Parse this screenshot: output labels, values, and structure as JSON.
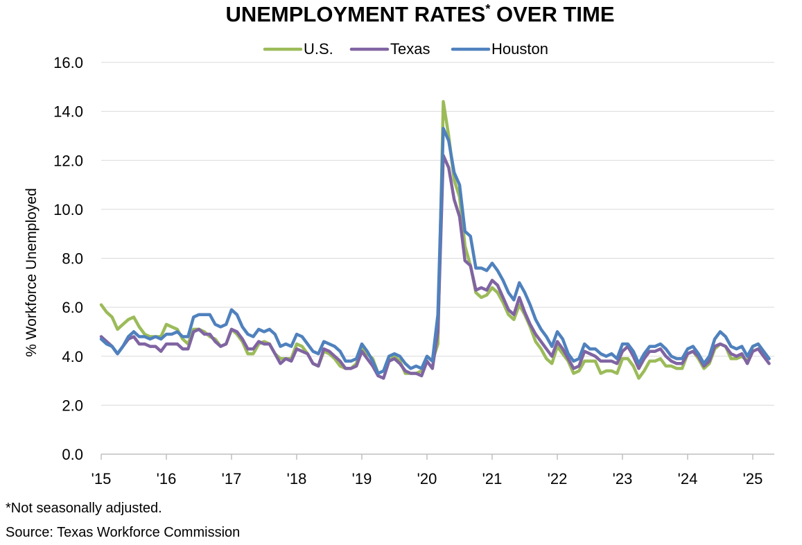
{
  "chart_data": {
    "type": "line",
    "title": "UNEMPLOYMENT RATES",
    "title_superscript": "*",
    "title_suffix": " OVER TIME",
    "ylabel": "% Workforce Unemployed",
    "xlabel": "",
    "ylim": [
      0,
      16
    ],
    "yticks": [
      "0.0",
      "2.0",
      "4.0",
      "6.0",
      "8.0",
      "10.0",
      "12.0",
      "14.0",
      "16.0"
    ],
    "xlim": [
      2015,
      2025.33
    ],
    "xticks": [
      {
        "value": 2015,
        "label": "'15"
      },
      {
        "value": 2016,
        "label": "'16"
      },
      {
        "value": 2017,
        "label": "'17"
      },
      {
        "value": 2018,
        "label": "'18"
      },
      {
        "value": 2019,
        "label": "'19"
      },
      {
        "value": 2020,
        "label": "'20"
      },
      {
        "value": 2021,
        "label": "'21"
      },
      {
        "value": 2022,
        "label": "'22"
      },
      {
        "value": 2023,
        "label": "'23"
      },
      {
        "value": 2024,
        "label": "'24"
      },
      {
        "value": 2025,
        "label": "'25"
      }
    ],
    "grid": "horizontal",
    "legend_position": "top-center",
    "x_start": "2015-01",
    "x_frequency": "monthly",
    "series": [
      {
        "name": "U.S.",
        "color": "#9BBB59",
        "values": [
          6.1,
          5.8,
          5.6,
          5.1,
          5.3,
          5.5,
          5.6,
          5.2,
          4.9,
          4.8,
          4.8,
          4.8,
          5.3,
          5.2,
          5.1,
          4.7,
          4.5,
          5.1,
          5.1,
          5.0,
          4.8,
          4.7,
          4.4,
          4.5,
          5.1,
          4.9,
          4.6,
          4.1,
          4.1,
          4.5,
          4.6,
          4.5,
          4.1,
          3.9,
          3.9,
          3.9,
          4.5,
          4.4,
          4.1,
          3.7,
          3.6,
          4.2,
          4.1,
          3.9,
          3.6,
          3.5,
          3.5,
          3.7,
          4.4,
          4.1,
          3.9,
          3.3,
          3.4,
          3.8,
          4.0,
          3.8,
          3.3,
          3.3,
          3.3,
          3.4,
          4.0,
          3.8,
          4.5,
          14.4,
          13.0,
          11.2,
          10.5,
          8.5,
          7.7,
          6.6,
          6.4,
          6.5,
          6.8,
          6.6,
          6.2,
          5.7,
          5.5,
          6.1,
          5.7,
          5.2,
          4.6,
          4.3,
          3.9,
          3.7,
          4.4,
          4.1,
          3.8,
          3.3,
          3.4,
          3.8,
          3.8,
          3.8,
          3.3,
          3.4,
          3.4,
          3.3,
          3.9,
          3.9,
          3.6,
          3.1,
          3.4,
          3.8,
          3.8,
          3.9,
          3.6,
          3.6,
          3.5,
          3.5,
          4.1,
          4.2,
          3.9,
          3.5,
          3.7,
          4.3,
          4.5,
          4.4,
          3.9,
          3.9,
          4.0,
          3.8,
          4.4,
          4.5,
          4.2,
          3.9
        ]
      },
      {
        "name": "Texas",
        "color": "#8064A2",
        "values": [
          4.8,
          4.6,
          4.4,
          4.1,
          4.4,
          4.7,
          4.8,
          4.5,
          4.5,
          4.4,
          4.4,
          4.2,
          4.5,
          4.5,
          4.5,
          4.3,
          4.3,
          5.0,
          5.1,
          4.9,
          4.9,
          4.6,
          4.4,
          4.5,
          5.1,
          5.0,
          4.7,
          4.3,
          4.3,
          4.6,
          4.5,
          4.5,
          4.1,
          3.7,
          3.9,
          3.8,
          4.3,
          4.2,
          4.1,
          3.7,
          3.6,
          4.3,
          4.2,
          4.0,
          3.8,
          3.5,
          3.5,
          3.6,
          4.2,
          3.9,
          3.6,
          3.2,
          3.1,
          3.8,
          3.9,
          3.7,
          3.4,
          3.3,
          3.3,
          3.2,
          3.8,
          3.5,
          5.0,
          12.2,
          11.7,
          10.4,
          9.7,
          7.9,
          7.7,
          6.7,
          6.8,
          6.7,
          7.1,
          6.9,
          6.4,
          5.9,
          5.7,
          6.4,
          5.8,
          5.3,
          4.9,
          4.6,
          4.3,
          4.0,
          4.6,
          4.3,
          3.9,
          3.5,
          3.6,
          4.2,
          4.1,
          4.0,
          3.8,
          3.8,
          3.8,
          3.7,
          4.2,
          4.4,
          4.0,
          3.5,
          3.9,
          4.2,
          4.2,
          4.3,
          4.0,
          3.8,
          3.7,
          3.7,
          4.1,
          4.2,
          4.0,
          3.6,
          3.8,
          4.4,
          4.5,
          4.4,
          4.1,
          4.0,
          4.1,
          3.7,
          4.2,
          4.3,
          4.0,
          3.7
        ]
      },
      {
        "name": "Houston",
        "color": "#4F81BD",
        "values": [
          4.7,
          4.5,
          4.4,
          4.1,
          4.4,
          4.8,
          5.0,
          4.8,
          4.8,
          4.7,
          4.8,
          4.7,
          4.9,
          4.9,
          5.0,
          4.8,
          4.8,
          5.6,
          5.7,
          5.7,
          5.7,
          5.3,
          5.2,
          5.3,
          5.9,
          5.7,
          5.2,
          4.9,
          4.8,
          5.1,
          5.0,
          5.1,
          4.9,
          4.4,
          4.5,
          4.4,
          4.9,
          4.8,
          4.5,
          4.2,
          4.1,
          4.6,
          4.5,
          4.4,
          4.2,
          3.8,
          3.8,
          3.9,
          4.5,
          4.2,
          3.8,
          3.3,
          3.4,
          4.0,
          4.1,
          4.0,
          3.7,
          3.5,
          3.6,
          3.5,
          4.0,
          3.8,
          5.7,
          13.3,
          12.8,
          11.5,
          11.0,
          9.1,
          8.9,
          7.6,
          7.6,
          7.5,
          7.8,
          7.5,
          7.1,
          6.6,
          6.3,
          7.0,
          6.6,
          6.1,
          5.5,
          5.1,
          4.8,
          4.4,
          5.0,
          4.7,
          4.1,
          3.8,
          3.9,
          4.5,
          4.3,
          4.3,
          4.1,
          4.0,
          4.1,
          3.9,
          4.5,
          4.5,
          4.2,
          3.7,
          4.1,
          4.4,
          4.4,
          4.5,
          4.3,
          4.0,
          3.9,
          3.9,
          4.3,
          4.4,
          4.1,
          3.7,
          4.0,
          4.7,
          5.0,
          4.8,
          4.4,
          4.3,
          4.4,
          4.0,
          4.4,
          4.5,
          4.2,
          3.9
        ]
      }
    ]
  },
  "footnotes": {
    "note": "*Not seasonally adjusted.",
    "source": "Source: Texas Workforce Commission"
  }
}
